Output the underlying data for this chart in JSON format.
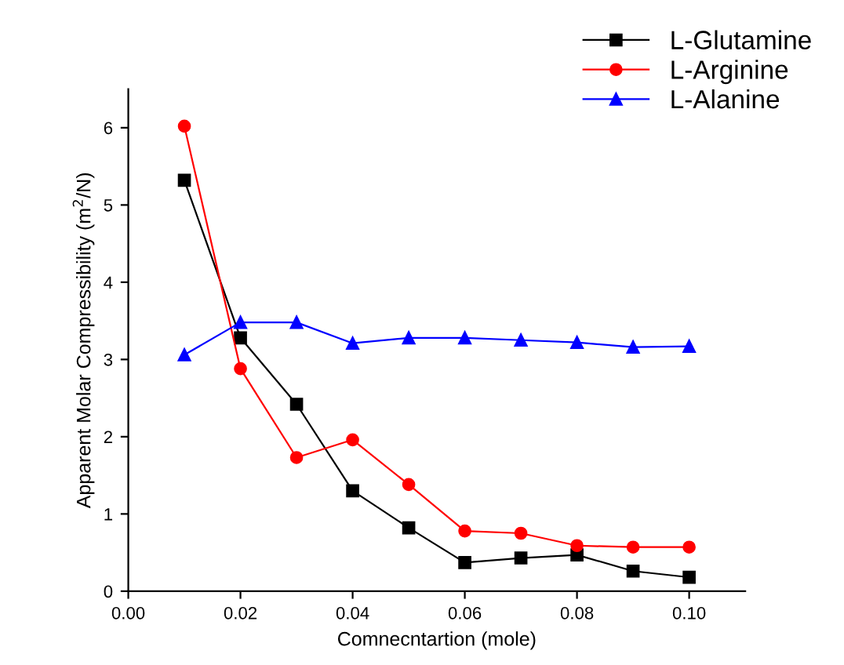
{
  "chart_data": {
    "type": "line",
    "xlabel": "Comnecntartion (mole)",
    "ylabel": "Apparent Molar Compressibility (m$^{2}$/N)",
    "x": [
      0.01,
      0.02,
      0.03,
      0.04,
      0.05,
      0.06,
      0.07,
      0.08,
      0.09,
      0.1
    ],
    "series": [
      {
        "name": "L-Glutamine",
        "color": "#000000",
        "marker": "square",
        "values": [
          5.32,
          3.28,
          2.42,
          1.3,
          0.82,
          0.37,
          0.43,
          0.47,
          0.26,
          0.18
        ]
      },
      {
        "name": "L-Arginine",
        "color": "#ff0000",
        "marker": "circle",
        "values": [
          6.02,
          2.88,
          1.73,
          1.96,
          1.38,
          0.78,
          0.75,
          0.59,
          0.57,
          0.57
        ]
      },
      {
        "name": "L-Alanine",
        "color": "#0000ff",
        "marker": "triangle",
        "values": [
          3.06,
          3.48,
          3.48,
          3.21,
          3.28,
          3.28,
          3.25,
          3.22,
          3.16,
          3.17
        ]
      }
    ],
    "xlim": [
      0,
      0.11
    ],
    "xticks": [
      {
        "value": 0,
        "label": "0.00"
      },
      {
        "value": 0.02,
        "label": "0.02"
      },
      {
        "value": 0.04,
        "label": "0.04"
      },
      {
        "value": 0.06,
        "label": "0.06"
      },
      {
        "value": 0.08,
        "label": "0.08"
      },
      {
        "value": 0.1,
        "label": "0.10"
      }
    ],
    "ylim": [
      0,
      6.5
    ],
    "yticks": [
      0,
      1,
      2,
      3,
      4,
      5,
      6
    ],
    "grid": false,
    "legend": "top right",
    "line_style": "solid"
  }
}
